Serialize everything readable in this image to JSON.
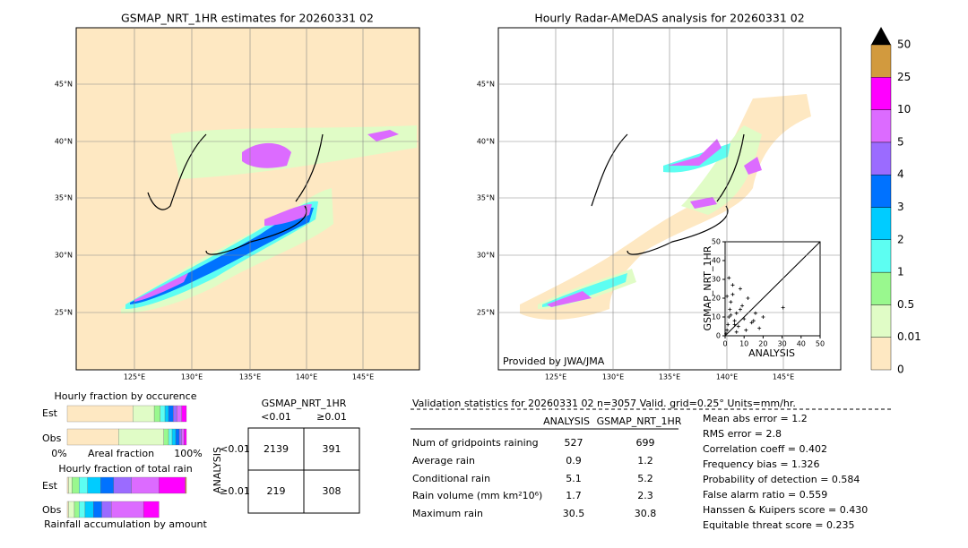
{
  "left_map": {
    "title": "GSMAP_NRT_1HR estimates for 20260331 02",
    "lat_labels": [
      "45°N",
      "40°N",
      "35°N",
      "30°N",
      "25°N"
    ],
    "lon_labels": [
      "125°E",
      "130°E",
      "135°E",
      "140°E",
      "145°E"
    ]
  },
  "right_map": {
    "title": "Hourly Radar-AMeDAS analysis for 20260331 02",
    "lat_labels": [
      "45°N",
      "40°N",
      "35°N",
      "30°N",
      "25°N"
    ],
    "lon_labels": [
      "125°E",
      "130°E",
      "135°E",
      "140°E",
      "145°E"
    ],
    "credit": "Provided by JWA/JMA"
  },
  "scatter": {
    "type": "scatter",
    "xlabel": "ANALYSIS",
    "ylabel": "GSMAP_NRT_1HR",
    "xlim": [
      0,
      50
    ],
    "ylim": [
      0,
      50
    ],
    "xticks": [
      0,
      10,
      20,
      30,
      40,
      50
    ],
    "yticks": [
      0,
      10,
      20,
      30,
      40,
      50
    ],
    "x": [
      0.5,
      1,
      1.5,
      2,
      2.5,
      3,
      4,
      5,
      6,
      7,
      8,
      9,
      10,
      12,
      14,
      16,
      18,
      20,
      30.5,
      2,
      4,
      6,
      3,
      8,
      1,
      5,
      11,
      15
    ],
    "y": [
      1,
      3,
      6,
      10,
      14,
      18,
      22,
      8,
      12,
      5,
      25,
      16,
      9,
      20,
      7,
      12,
      4,
      10,
      15,
      30.8,
      27,
      2,
      11,
      14,
      21,
      6,
      3,
      8
    ]
  },
  "colorbar": {
    "labels": [
      "0",
      "0.01",
      "0.5",
      "1",
      "2",
      "3",
      "4",
      "5",
      "10",
      "25",
      "50"
    ],
    "colors": [
      "#fee8c2",
      "#e0fcc6",
      "#99f88e",
      "#5dfef2",
      "#00ccff",
      "#0072ff",
      "#9b6bff",
      "#dc6bff",
      "#ff00ff",
      "#d29a3e"
    ],
    "over_color": "#000000"
  },
  "fraction_occurrence": {
    "title": "Hourly fraction by occurence",
    "rows": [
      "Est",
      "Obs"
    ],
    "axis_labels": [
      "0%",
      "Areal fraction",
      "100%"
    ],
    "Est": [
      0.55,
      0.18,
      0.05,
      0.04,
      0.03,
      0.04,
      0.03,
      0.04,
      0.04,
      0
    ],
    "Obs": [
      0.43,
      0.38,
      0.04,
      0.03,
      0.03,
      0.03,
      0.02,
      0.02,
      0.02,
      0
    ]
  },
  "fraction_total": {
    "title": "Hourly fraction of total rain",
    "rows": [
      "Est",
      "Obs"
    ],
    "footer": "Rainfall accumulation by amount",
    "Est": [
      0.01,
      0.03,
      0.06,
      0.07,
      0.11,
      0.11,
      0.15,
      0.23,
      0.22,
      0.01
    ],
    "Obs": [
      0.01,
      0.05,
      0.04,
      0.05,
      0.07,
      0.07,
      0.08,
      0.27,
      0.13,
      0
    ]
  },
  "contingency": {
    "title": "GSMAP_NRT_1HR",
    "col_labels": [
      "<0.01",
      "≥0.01"
    ],
    "row_title": "ANALYSIS",
    "row_labels": [
      "<0.01",
      "≥0.01"
    ],
    "cells": [
      [
        2139,
        391
      ],
      [
        219,
        308
      ]
    ]
  },
  "validation": {
    "header": "Validation statistics for 20260331 02  n=3057 Valid. grid=0.25° Units=mm/hr.",
    "columns": [
      "ANALYSIS",
      "GSMAP_NRT_1HR"
    ],
    "rows": [
      {
        "label": "Num of gridpoints raining",
        "values": [
          527,
          699
        ]
      },
      {
        "label": "Average rain",
        "values": [
          0.9,
          1.2
        ]
      },
      {
        "label": "Conditional rain",
        "values": [
          5.1,
          5.2
        ]
      },
      {
        "label": "Rain volume (mm km²10⁶)",
        "values": [
          1.7,
          2.3
        ]
      },
      {
        "label": "Maximum rain",
        "values": [
          30.5,
          30.8
        ]
      }
    ],
    "scores": [
      "Mean abs error =    1.2",
      "RMS error =    2.8",
      "Correlation coeff =  0.402",
      "Frequency bias =  1.326",
      "Probability of detection =  0.584",
      "False alarm ratio =  0.559",
      "Hanssen & Kuipers score =  0.430",
      "Equitable threat score =  0.235"
    ]
  }
}
